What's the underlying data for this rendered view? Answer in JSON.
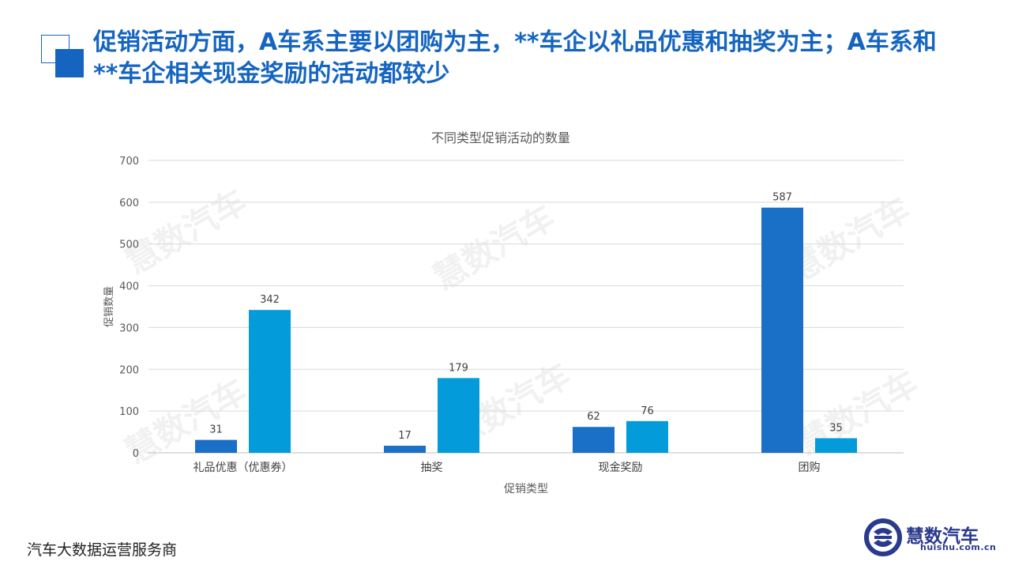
{
  "slide": {
    "title": "促销活动方面，A车系主要以团购为主，**车企以礼品优惠和抽奖为主；A车系和**车企相关现金奖励的活动都较少",
    "footer": "汽车大数据运营服务商"
  },
  "logo": {
    "name": "慧数汽车",
    "url": "huishu.com.cn"
  },
  "watermark": "慧数汽车",
  "colors": {
    "title": "#1565c0",
    "series1": "#1a6fc6",
    "series2": "#039bd9",
    "grid": "#d9d9d9"
  },
  "chart_data": {
    "type": "bar",
    "title": "不同类型促销活动的数量",
    "xlabel": "促销类型",
    "ylabel": "促销数量",
    "ylim": [
      0,
      700
    ],
    "yticks": [
      "0",
      "100",
      "200",
      "300",
      "400",
      "500",
      "600",
      "700"
    ],
    "categories": [
      "礼品优惠（优惠券）",
      "抽奖",
      "现金奖励",
      "团购"
    ],
    "series": [
      {
        "values": [
          31,
          17,
          62,
          587
        ]
      },
      {
        "values": [
          342,
          179,
          76,
          35
        ]
      }
    ],
    "grid": true,
    "legend": "none"
  }
}
